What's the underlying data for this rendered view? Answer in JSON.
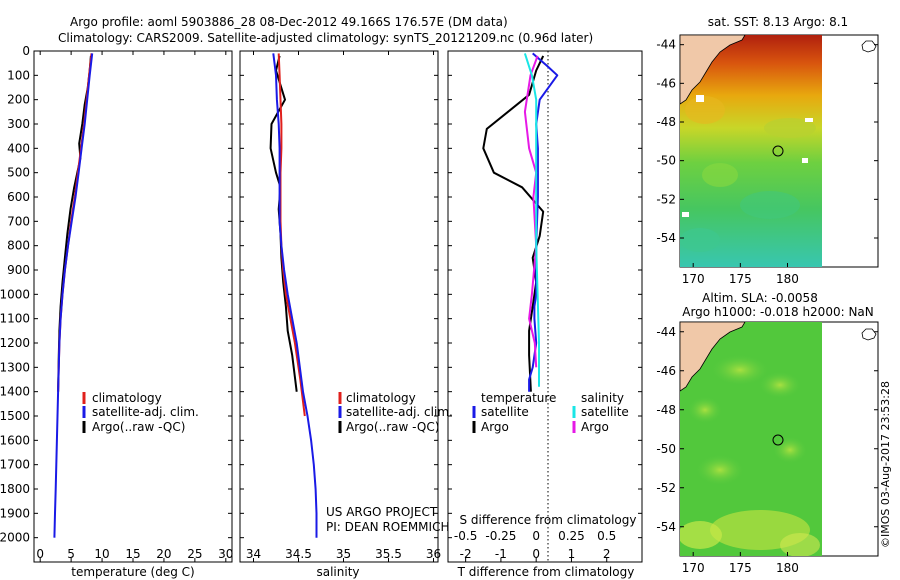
{
  "header": {
    "title_line1": "Argo profile: aoml 5903886_28 08-Dec-2012 49.166S 176.57E (DM data)",
    "title_line2": "Climatology: CARS2009. Satellite-adjusted climatology: synTS_20121209.nc (0.96d later)"
  },
  "colors": {
    "climatology": "#e0201c",
    "satellite": "#1a1ae6",
    "argo": "#000000",
    "satellite_salinity": "#19e6e6",
    "argo_salinity": "#e619e6"
  },
  "chart_data": [
    {
      "type": "line",
      "name": "temperature-profile",
      "xlabel": "temperature (deg C)",
      "ylabel": "",
      "xlim": [
        -1,
        31
      ],
      "ylim": [
        2100,
        0
      ],
      "xticks": [
        "0",
        "5",
        "10",
        "15",
        "20",
        "25",
        "30"
      ],
      "yticks": [
        "0",
        "100",
        "200",
        "300",
        "400",
        "500",
        "600",
        "700",
        "800",
        "900",
        "1000",
        "1100",
        "1200",
        "1300",
        "1400",
        "1500",
        "1600",
        "1700",
        "1800",
        "1900",
        "2000"
      ],
      "legend": [
        "climatology",
        "satellite-adj. clim.",
        "Argo(..raw -QC)"
      ],
      "series": [
        {
          "name": "climatology",
          "x": [
            8.3,
            7.9,
            7.5,
            7.1,
            6.6,
            6.1,
            5.6,
            5.0,
            4.5,
            4.0,
            3.6,
            3.3,
            3.1,
            2.9
          ],
          "y": [
            10,
            100,
            200,
            300,
            400,
            500,
            600,
            700,
            800,
            900,
            1000,
            1100,
            1200,
            1400
          ]
        },
        {
          "name": "satellite-adj. clim.",
          "x": [
            8.4,
            8.0,
            7.6,
            7.2,
            6.7,
            6.2,
            5.7,
            5.1,
            4.5,
            4.0,
            3.6,
            3.3,
            3.1,
            2.9,
            2.8,
            2.7,
            2.6,
            2.5,
            2.4,
            2.3
          ],
          "y": [
            10,
            100,
            200,
            300,
            400,
            500,
            600,
            700,
            800,
            900,
            1000,
            1100,
            1200,
            1400,
            1500,
            1600,
            1700,
            1800,
            1900,
            2000
          ]
        },
        {
          "name": "Argo(..raw -QC)",
          "x": [
            8.2,
            8.0,
            7.7,
            7.2,
            6.8,
            6.3,
            6.5,
            6.0,
            5.5,
            4.9,
            4.4,
            4.0,
            3.6,
            3.3,
            3.1,
            3.0,
            2.9
          ],
          "y": [
            20,
            80,
            150,
            220,
            300,
            380,
            440,
            500,
            560,
            650,
            750,
            850,
            950,
            1050,
            1150,
            1250,
            1400
          ]
        }
      ]
    },
    {
      "type": "line",
      "name": "salinity-profile",
      "xlabel": "salinity",
      "xlim": [
        33.85,
        36.05
      ],
      "ylim": [
        2100,
        0
      ],
      "xticks": [
        "34",
        "34.5",
        "35",
        "35.5",
        "36"
      ],
      "legend": [
        "climatology",
        "satellite-adj. clim.",
        "Argo(..raw -QC)"
      ],
      "series": [
        {
          "name": "climatology",
          "x": [
            34.28,
            34.29,
            34.3,
            34.31,
            34.31,
            34.3,
            34.3,
            34.3,
            34.31,
            34.33,
            34.36,
            34.41,
            34.46,
            34.52,
            34.57
          ],
          "y": [
            10,
            100,
            200,
            300,
            400,
            500,
            600,
            700,
            800,
            900,
            1000,
            1100,
            1200,
            1350,
            1500
          ]
        },
        {
          "name": "satellite-adj. clim.",
          "x": [
            34.22,
            34.25,
            34.26,
            34.28,
            34.29,
            34.29,
            34.29,
            34.29,
            34.31,
            34.34,
            34.38,
            34.43,
            34.48,
            34.55,
            34.6,
            34.64,
            34.67,
            34.69,
            34.7,
            34.7
          ],
          "y": [
            10,
            100,
            200,
            300,
            400,
            500,
            600,
            700,
            800,
            900,
            1000,
            1100,
            1200,
            1400,
            1500,
            1600,
            1700,
            1800,
            1900,
            2000
          ]
        },
        {
          "name": "Argo(..raw -QC)",
          "x": [
            34.29,
            34.25,
            34.35,
            34.2,
            34.19,
            34.25,
            34.3,
            34.28,
            34.3,
            34.31,
            34.33,
            34.36,
            34.38,
            34.43,
            34.48
          ],
          "y": [
            20,
            80,
            200,
            300,
            400,
            500,
            560,
            650,
            750,
            850,
            950,
            1050,
            1150,
            1250,
            1400
          ]
        }
      ]
    },
    {
      "type": "line",
      "name": "difference-profile",
      "xlabel": "T difference from climatology",
      "top_label": "S difference from climatology",
      "xlim": [
        -2.5,
        3.0
      ],
      "ylim": [
        2100,
        0
      ],
      "xticks_bottom": [
        "-2",
        "-1",
        "0",
        "1",
        "2"
      ],
      "xticks_top": [
        "-0.5",
        "-0.25",
        "0",
        "0.25",
        "0.5"
      ],
      "legend_temperature": {
        "heading": "temperature",
        "items": [
          "satellite",
          "Argo"
        ]
      },
      "legend_salinity": {
        "heading": "salinity",
        "items": [
          "satellite",
          "Argo"
        ]
      },
      "series": [
        {
          "name": "temperature satellite",
          "x": [
            -0.1,
            0.3,
            0.6,
            0.1,
            0.0,
            0.05,
            0.05,
            0.0,
            0.0,
            -0.05,
            -0.05,
            0.0,
            -0.1,
            -0.2,
            -0.2
          ],
          "y": [
            10,
            60,
            100,
            200,
            300,
            400,
            600,
            800,
            1000,
            1050,
            1100,
            1200,
            1300,
            1350,
            1400
          ]
        },
        {
          "name": "temperature Argo",
          "x": [
            0.2,
            0.0,
            -0.2,
            -0.8,
            -1.4,
            -1.5,
            -1.2,
            -0.4,
            0.2,
            0.1,
            -0.1,
            0.0,
            -0.1,
            -0.2,
            -0.2,
            -0.15
          ],
          "y": [
            20,
            80,
            180,
            250,
            320,
            400,
            500,
            560,
            660,
            760,
            850,
            950,
            1050,
            1150,
            1250,
            1400
          ]
        },
        {
          "name": "salinity satellite",
          "x": [
            -0.08,
            -0.03,
            0.0,
            0.0,
            0.0,
            0.0,
            0.01,
            0.02,
            0.02,
            0.02
          ],
          "y": [
            10,
            100,
            200,
            400,
            600,
            800,
            1000,
            1200,
            1300,
            1380
          ]
        },
        {
          "name": "salinity Argo",
          "x": [
            0.01,
            -0.04,
            -0.08,
            -0.05,
            0.0,
            -0.02,
            0.0,
            -0.03,
            -0.05,
            -0.01,
            0.0
          ],
          "y": [
            20,
            100,
            250,
            400,
            500,
            600,
            800,
            1000,
            1100,
            1200,
            1300
          ]
        }
      ]
    }
  ],
  "maps": {
    "sst": {
      "title": "sat. SST: 8.13 Argo: 8.1",
      "yticks": [
        "-44",
        "-46",
        "-48",
        "-50",
        "-52",
        "-54"
      ],
      "xticks": [
        "170",
        "175",
        "180"
      ]
    },
    "sla": {
      "title_line1": "Altim. SLA: -0.0058",
      "title_line2": "Argo h1000: -0.018 h2000: NaN",
      "yticks": [
        "-44",
        "-46",
        "-48",
        "-50",
        "-52",
        "-54"
      ],
      "xticks": [
        "170",
        "175",
        "180"
      ]
    }
  },
  "footer": {
    "project": "US ARGO PROJECT",
    "pi": "PI: DEAN ROEMMICH",
    "credit": "©IMOS 03-Aug-2017 23:53:28"
  }
}
